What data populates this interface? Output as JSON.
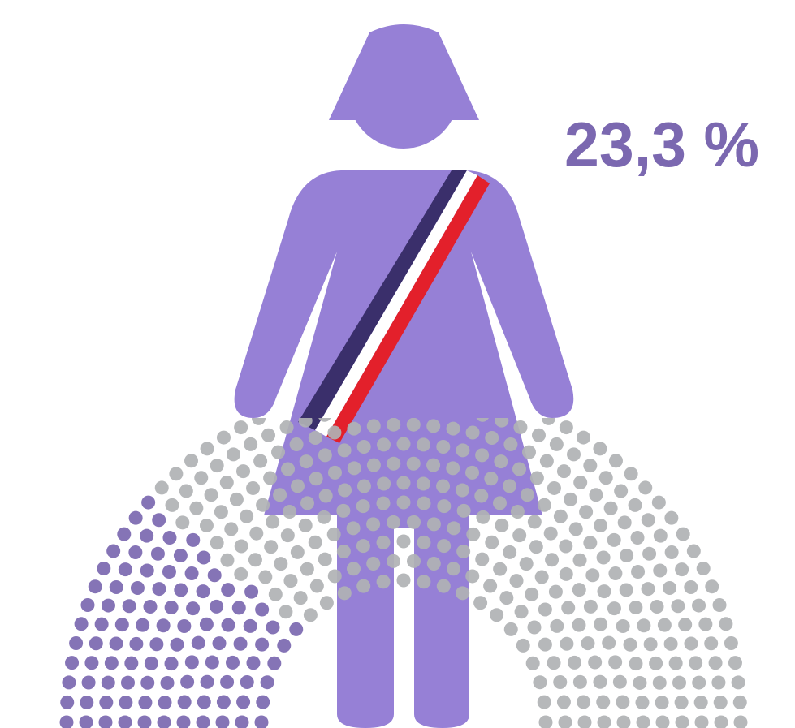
{
  "chart_data": {
    "type": "parliament",
    "values": [
      23.3
    ],
    "value_labels": [
      "23,3 %"
    ],
    "color": "#7b68b0",
    "rest_color": "#b0b2b4"
  }
}
